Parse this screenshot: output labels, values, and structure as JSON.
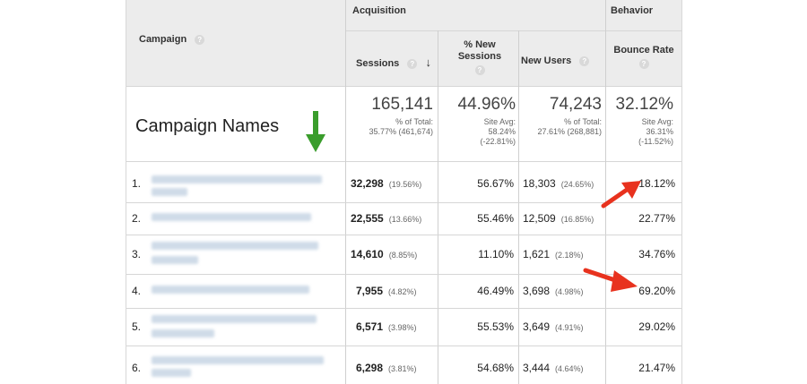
{
  "header": {
    "acquisition": "Acquisition",
    "behavior": "Behavior",
    "campaign": "Campaign",
    "sessions": "Sessions",
    "new_sessions": "% New Sessions",
    "new_users": "New Users",
    "bounce_rate": "Bounce Rate",
    "help_glyph": "?",
    "sort_glyph": "↓"
  },
  "totals": {
    "label": "Campaign Names",
    "sessions": "165,141",
    "sessions_sub1": "% of Total:",
    "sessions_sub2": "35.77% (461,674)",
    "new_sessions": "44.96%",
    "new_sessions_sub1": "Site Avg:",
    "new_sessions_sub2": "58.24%",
    "new_sessions_sub3": "(-22.81%)",
    "new_users": "74,243",
    "new_users_sub1": "% of Total:",
    "new_users_sub2": "27.61% (268,881)",
    "bounce": "32.12%",
    "bounce_sub1": "Site Avg:",
    "bounce_sub2": "36.31%",
    "bounce_sub3": "(-11.52%)"
  },
  "rows": [
    {
      "index": "1.",
      "sessions": "32,298",
      "sessions_pct": "(19.56%)",
      "new_sessions": "56.67%",
      "new_users": "18,303",
      "new_users_pct": "(24.65%)",
      "bounce": "18.12%"
    },
    {
      "index": "2.",
      "sessions": "22,555",
      "sessions_pct": "(13.66%)",
      "new_sessions": "55.46%",
      "new_users": "12,509",
      "new_users_pct": "(16.85%)",
      "bounce": "22.77%"
    },
    {
      "index": "3.",
      "sessions": "14,610",
      "sessions_pct": "(8.85%)",
      "new_sessions": "11.10%",
      "new_users": "1,621",
      "new_users_pct": "(2.18%)",
      "bounce": "34.76%"
    },
    {
      "index": "4.",
      "sessions": "7,955",
      "sessions_pct": "(4.82%)",
      "new_sessions": "46.49%",
      "new_users": "3,698",
      "new_users_pct": "(4.98%)",
      "bounce": "69.20%"
    },
    {
      "index": "5.",
      "sessions": "6,571",
      "sessions_pct": "(3.98%)",
      "new_sessions": "55.53%",
      "new_users": "3,649",
      "new_users_pct": "(4.91%)",
      "bounce": "29.02%"
    },
    {
      "index": "6.",
      "sessions": "6,298",
      "sessions_pct": "(3.81%)",
      "new_sessions": "54.68%",
      "new_users": "3,444",
      "new_users_pct": "(4.64%)",
      "bounce": "21.47%"
    }
  ],
  "colors": {
    "arrow_red": "#e8321e",
    "arrow_green": "#3a9d2c",
    "header_bg": "#ececec"
  }
}
